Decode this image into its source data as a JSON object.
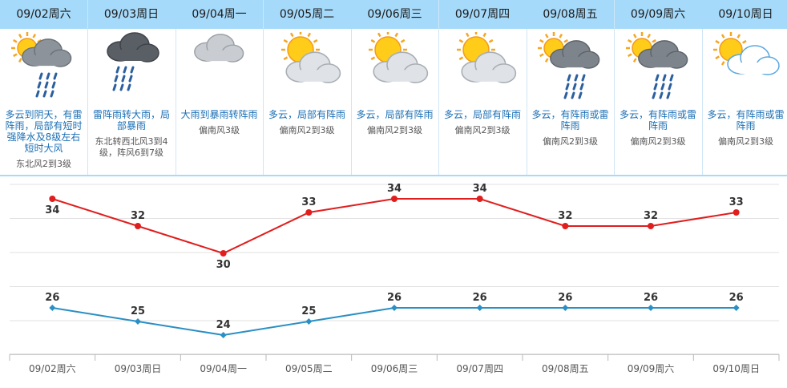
{
  "days": [
    {
      "date": "09/02周六",
      "icon": "cloudy-sun-rain-icon",
      "desc": "多云到阴天，有雷阵雨，局部有短时强降水及8级左右短时大风",
      "wind": "东北风2到3级"
    },
    {
      "date": "09/03周日",
      "icon": "thunder-rain-icon",
      "desc": "雷阵雨转大雨，局部暴雨",
      "wind": "东北转西北风3到4级，阵风6到7级"
    },
    {
      "date": "09/04周一",
      "icon": "overcast-icon",
      "desc": "大雨到暴雨转阵雨",
      "wind": "偏南风3级"
    },
    {
      "date": "09/05周二",
      "icon": "partly-cloudy-icon",
      "desc": "多云，局部有阵雨",
      "wind": "偏南风2到3级"
    },
    {
      "date": "09/06周三",
      "icon": "partly-cloudy-icon",
      "desc": "多云，局部有阵雨",
      "wind": "偏南风2到3级"
    },
    {
      "date": "09/07周四",
      "icon": "partly-cloudy-icon",
      "desc": "多云，局部有阵雨",
      "wind": "偏南风2到3级"
    },
    {
      "date": "09/08周五",
      "icon": "sun-cloud-rain-icon",
      "desc": "多云，有阵雨或雷阵雨",
      "wind": "偏南风2到3级"
    },
    {
      "date": "09/09周六",
      "icon": "sun-cloud-rain-icon",
      "desc": "多云，有阵雨或雷阵雨",
      "wind": "偏南风2到3级"
    },
    {
      "date": "09/10周日",
      "icon": "sun-light-cloud-icon",
      "desc": "多云，有阵雨或雷阵雨",
      "wind": "偏南风2到3级"
    }
  ],
  "colors": {
    "header_bg": "#a6dafa",
    "high_line": "#e01e1e",
    "low_line": "#2a8fc4",
    "desc_text": "#1a6fb5"
  },
  "chart_data": {
    "type": "line",
    "categories": [
      "09/02周六",
      "09/03周日",
      "09/04周一",
      "09/05周二",
      "09/06周三",
      "09/07周四",
      "09/08周五",
      "09/09周六",
      "09/10周日"
    ],
    "series": [
      {
        "values": [
          34,
          32,
          30,
          33,
          34,
          34,
          32,
          32,
          33
        ],
        "color": "#e01e1e"
      },
      {
        "values": [
          26,
          25,
          24,
          25,
          26,
          26,
          26,
          26,
          26
        ],
        "color": "#2a8fc4"
      }
    ],
    "title": "",
    "xlabel": "",
    "ylabel": "",
    "grid": true,
    "legend": "none"
  }
}
